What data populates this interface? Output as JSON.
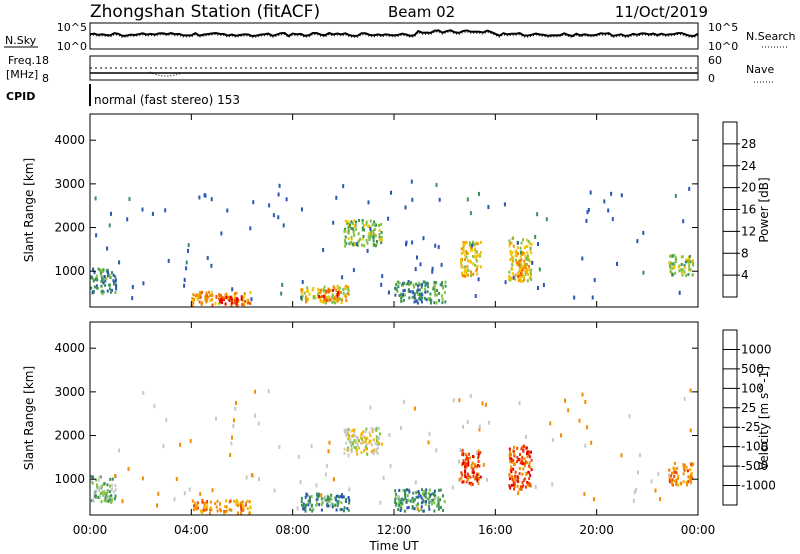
{
  "header": {
    "title": "Zhongshan Station (fitACF)",
    "beam": "Beam 02",
    "date": "11/Oct/2019"
  },
  "noise_panel": {
    "left_label": "N.Sky",
    "right_label": "N.Search",
    "left_ticks": [
      "10^5",
      "10^0"
    ],
    "right_ticks": [
      "10^5",
      "10^0"
    ]
  },
  "freq_panel": {
    "left_label_1": "Freq.",
    "left_label_2": "[MHz]",
    "right_label": "Nave",
    "left_ticks": [
      "18",
      "8"
    ],
    "right_ticks": [
      "60",
      "0"
    ]
  },
  "cpid": {
    "label": "CPID",
    "text": "normal (fast stereo) 153"
  },
  "colors": {
    "power_scale": [
      "#0000ff",
      "#2a55b4",
      "#3a8f5a",
      "#7dc242",
      "#f2c400",
      "#f08c00",
      "#ee5a00",
      "#e60000"
    ],
    "velocity_scale": [
      "#e60000",
      "#f04000",
      "#f08c00",
      "#f5b800",
      "#c8c8c8",
      "#7dc242",
      "#3a8f5a",
      "#2a55b4",
      "#0000ff"
    ]
  },
  "chart_data": [
    {
      "type": "heatmap",
      "title": "Power",
      "xlabel": "Time UT",
      "ylabel": "Slant Range [km]",
      "x_ticks": [
        "00:00",
        "04:00",
        "08:00",
        "12:00",
        "16:00",
        "20:00",
        "00:00"
      ],
      "y_ticks": [
        "1000",
        "2000",
        "3000",
        "4000"
      ],
      "xlim_hours": [
        0,
        24
      ],
      "ylim_km": [
        180,
        4600
      ],
      "colorbar": {
        "label": "Power [dB]",
        "ticks": [
          "4",
          "8",
          "12",
          "16",
          "20",
          "24",
          "28"
        ],
        "range": [
          0,
          32
        ]
      },
      "scatter_regions": [
        {
          "t0": 0.0,
          "t1": 1.0,
          "r0": 500,
          "r1": 1100,
          "level": 2
        },
        {
          "t0": 4.0,
          "t1": 6.3,
          "r0": 250,
          "r1": 550,
          "level": 5
        },
        {
          "t0": 5.0,
          "t1": 6.0,
          "r0": 250,
          "r1": 450,
          "level": 7
        },
        {
          "t0": 8.3,
          "t1": 10.2,
          "r0": 300,
          "r1": 700,
          "level": 4
        },
        {
          "t0": 9.0,
          "t1": 9.8,
          "r0": 350,
          "r1": 600,
          "level": 6
        },
        {
          "t0": 10.0,
          "t1": 11.5,
          "r0": 1600,
          "r1": 2200,
          "level": 3
        },
        {
          "t0": 12.0,
          "t1": 14.0,
          "r0": 300,
          "r1": 800,
          "level": 2
        },
        {
          "t0": 14.6,
          "t1": 15.4,
          "r0": 900,
          "r1": 1700,
          "level": 4
        },
        {
          "t0": 16.5,
          "t1": 17.4,
          "r0": 800,
          "r1": 1800,
          "level": 4
        },
        {
          "t0": 16.8,
          "t1": 17.2,
          "r0": 900,
          "r1": 1300,
          "level": 5
        },
        {
          "t0": 22.8,
          "t1": 23.8,
          "r0": 900,
          "r1": 1400,
          "level": 3
        }
      ]
    },
    {
      "type": "heatmap",
      "title": "Velocity",
      "xlabel": "Time UT",
      "ylabel": "Slant Range [km]",
      "x_ticks": [
        "00:00",
        "04:00",
        "08:00",
        "12:00",
        "16:00",
        "20:00",
        "00:00"
      ],
      "y_ticks": [
        "1000",
        "2000",
        "3000",
        "4000"
      ],
      "xlim_hours": [
        0,
        24
      ],
      "ylim_km": [
        180,
        4600
      ],
      "colorbar": {
        "label": "Velocity [m s^-1]",
        "ticks": [
          "1000",
          "500",
          "100",
          "25",
          "-25",
          "-100",
          "-500",
          "-1000"
        ]
      },
      "scatter_regions": [
        {
          "t0": 0.0,
          "t1": 1.0,
          "r0": 500,
          "r1": 1100,
          "level": 5
        },
        {
          "t0": 4.0,
          "t1": 6.3,
          "r0": 250,
          "r1": 550,
          "level": 2
        },
        {
          "t0": 8.3,
          "t1": 10.2,
          "r0": 300,
          "r1": 700,
          "level": 6
        },
        {
          "t0": 10.0,
          "t1": 11.5,
          "r0": 1600,
          "r1": 2200,
          "level": 4
        },
        {
          "t0": 12.0,
          "t1": 14.0,
          "r0": 300,
          "r1": 800,
          "level": 6
        },
        {
          "t0": 14.6,
          "t1": 15.4,
          "r0": 900,
          "r1": 1700,
          "level": 1
        },
        {
          "t0": 16.5,
          "t1": 17.4,
          "r0": 800,
          "r1": 1800,
          "level": 1
        },
        {
          "t0": 22.8,
          "t1": 23.8,
          "r0": 900,
          "r1": 1400,
          "level": 2
        }
      ]
    }
  ]
}
